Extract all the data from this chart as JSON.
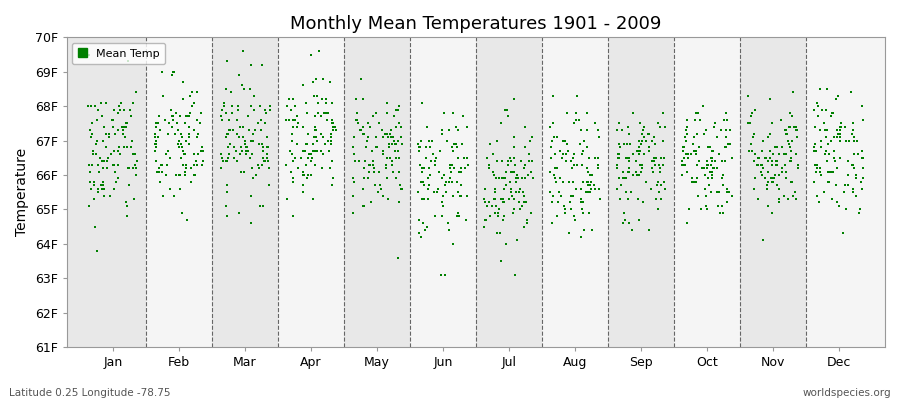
{
  "title": "Monthly Mean Temperatures 1901 - 2009",
  "ylabel": "Temperature",
  "xlabel": "",
  "legend_label": "Mean Temp",
  "subtitle_left": "Latitude 0.25 Longitude -78.75",
  "subtitle_right": "worldspecies.org",
  "months": [
    "Jan",
    "Feb",
    "Mar",
    "Apr",
    "May",
    "Jun",
    "Jul",
    "Aug",
    "Sep",
    "Oct",
    "Nov",
    "Dec"
  ],
  "ylim": [
    61,
    70
  ],
  "yticks": [
    61,
    62,
    63,
    64,
    65,
    66,
    67,
    68,
    69,
    70
  ],
  "ytick_labels": [
    "61F",
    "62F",
    "63F",
    "64F",
    "65F",
    "66F",
    "67F",
    "68F",
    "69F",
    "70F"
  ],
  "dot_color": "#008000",
  "dot_size": 3,
  "plot_bg_color": "#f0f0f0",
  "fig_bg_color": "#ffffff",
  "band_colors": [
    "#e8e8e8",
    "#f5f5f5"
  ],
  "n_years": 109,
  "monthly_means": [
    66.6,
    66.85,
    67.1,
    67.2,
    66.7,
    65.85,
    65.85,
    65.95,
    66.3,
    66.45,
    66.5,
    66.65
  ],
  "monthly_stds": [
    1.05,
    1.0,
    0.9,
    0.9,
    0.9,
    0.95,
    0.95,
    0.9,
    0.85,
    0.85,
    0.85,
    0.9
  ],
  "seed": 42
}
